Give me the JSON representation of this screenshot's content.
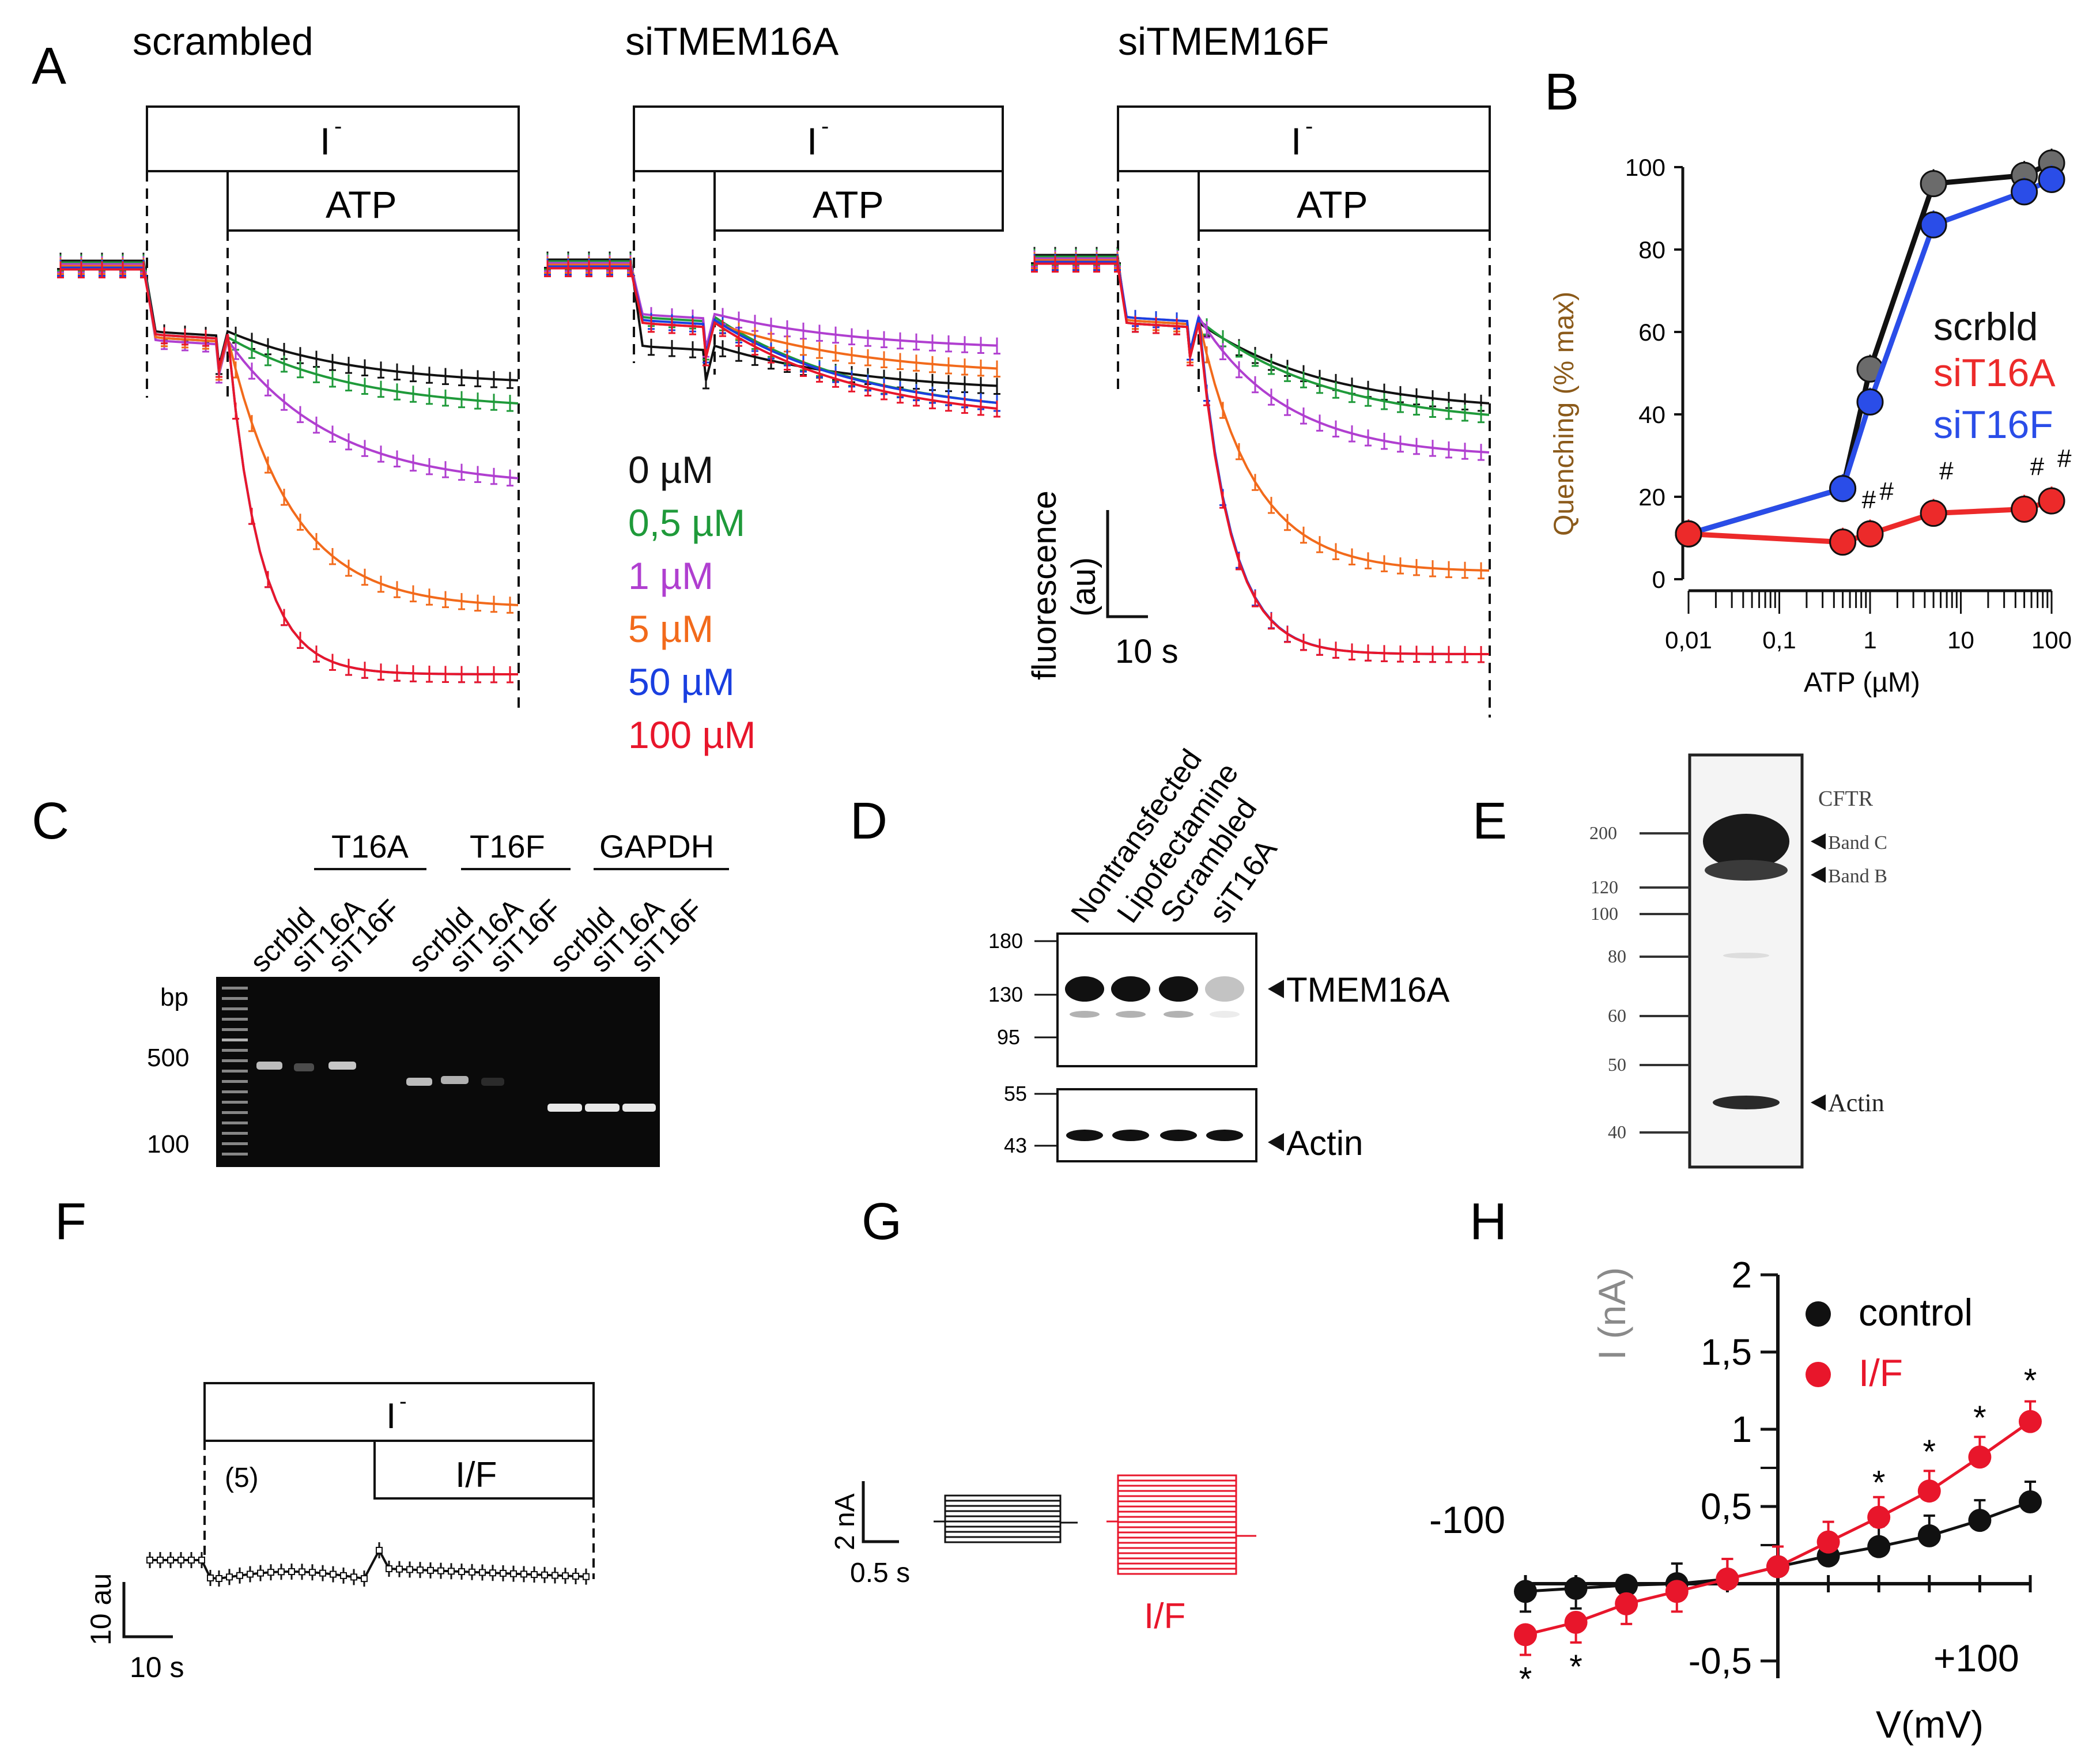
{
  "colors": {
    "black": "#111111",
    "green": "#1f9a3a",
    "purple": "#b03fd0",
    "orange": "#f26a1b",
    "blue": "#1a3fe0",
    "red": "#e8162b",
    "bBlue": "#2a4de8",
    "bRed": "#ec2a2a",
    "gray": "#888888"
  },
  "panels": {
    "A": "A",
    "B": "B",
    "C": "C",
    "D": "D",
    "E": "E",
    "F": "F",
    "G": "G",
    "H": "H"
  },
  "panelA": {
    "titles": [
      "scrambled",
      "siTMEM16A",
      "siTMEM16F"
    ],
    "iodide": "I",
    "iodide_sup": "-",
    "atp": "ATP",
    "legend": [
      "0 µM",
      "0,5 µM",
      "1 µM",
      "5 µM",
      "50 µM",
      "100 µM"
    ],
    "scale_y": "fluorescence",
    "scale_y2": "(au)",
    "scale_x": "10 s"
  },
  "chart_data": [
    {
      "type": "scatter",
      "panel": "B",
      "title": "",
      "xlabel": "ATP (µM)",
      "ylabel": "Quenching  (% max)",
      "xscale": "log",
      "xlim": [
        0.01,
        100
      ],
      "ylim": [
        0,
        100
      ],
      "xticks": [
        "0,01",
        "0,1",
        "1",
        "10",
        "100"
      ],
      "yticks": [
        "0",
        "20",
        "40",
        "60",
        "80",
        "100"
      ],
      "x": [
        0.01,
        0.5,
        1,
        5,
        50,
        100
      ],
      "series": [
        {
          "name": "scrbld",
          "values": [
            11,
            22,
            51,
            96,
            98,
            101
          ]
        },
        {
          "name": "siT16A",
          "values": [
            11,
            9,
            11,
            16,
            17,
            19
          ]
        },
        {
          "name": "siT16F",
          "values": [
            11,
            22,
            43,
            86,
            94,
            97
          ]
        }
      ],
      "significance_marks": [
        "#",
        "#",
        "#",
        "#",
        "#"
      ]
    },
    {
      "type": "scatter",
      "panel": "H",
      "xlabel": "V(mV)",
      "ylabel": "I (nA)",
      "xlim": [
        -100,
        100
      ],
      "ylim": [
        -0.5,
        2
      ],
      "x_tick_labels": [
        "-100",
        "+100"
      ],
      "yticks": [
        "-0,5",
        "0,5",
        "1",
        "1,5",
        "2"
      ],
      "x": [
        -100,
        -80,
        -60,
        -40,
        -20,
        0,
        20,
        40,
        60,
        80,
        100
      ],
      "series": [
        {
          "name": "control",
          "values": [
            -0.05,
            -0.03,
            -0.01,
            0.0,
            0.03,
            0.11,
            0.18,
            0.24,
            0.31,
            0.41,
            0.53
          ]
        },
        {
          "name": "I/F",
          "values": [
            -0.33,
            -0.25,
            -0.13,
            -0.05,
            0.03,
            0.11,
            0.27,
            0.43,
            0.6,
            0.82,
            1.05
          ]
        }
      ],
      "significance_marks": [
        "*",
        "*",
        "*",
        "*",
        "*",
        "*"
      ]
    }
  ],
  "panelC": {
    "groups": [
      "T16A",
      "T16F",
      "GAPDH"
    ],
    "lanes": [
      "scrbld",
      "siT16A",
      "siT16F",
      "scrbld",
      "siT16A",
      "siT16F",
      "scrbld",
      "siT16A",
      "siT16F"
    ],
    "bp": "bp",
    "markers": [
      "500",
      "100"
    ]
  },
  "panelD": {
    "lanes": [
      "Nontransfected",
      "Lipofectamine",
      "Scrambled",
      "siT16A"
    ],
    "mw_top": [
      "180",
      "130",
      "95"
    ],
    "mw_bottom": [
      "55",
      "43"
    ],
    "label_top": "TMEM16A",
    "label_bottom": "Actin"
  },
  "panelE": {
    "title": "CFTR",
    "mw": [
      "200",
      "120",
      "100",
      "80",
      "60",
      "50",
      "40"
    ],
    "labels": [
      "Band C",
      "Band B",
      "Actin"
    ]
  },
  "panelF": {
    "iodide": "I",
    "iodide_sup": "-",
    "treatment": "I/F",
    "n": "(5)",
    "scale_y": "10 au",
    "scale_x": "10 s"
  },
  "panelG": {
    "scale_y": "2 nA",
    "scale_x": "0.5 s",
    "label": "I/F"
  },
  "panelH": {
    "legend": [
      "control",
      "I/F"
    ],
    "ylabel": "I (nA)",
    "xlabel": "V(mV)",
    "neg_label": "-100",
    "pos_label": "+100"
  }
}
